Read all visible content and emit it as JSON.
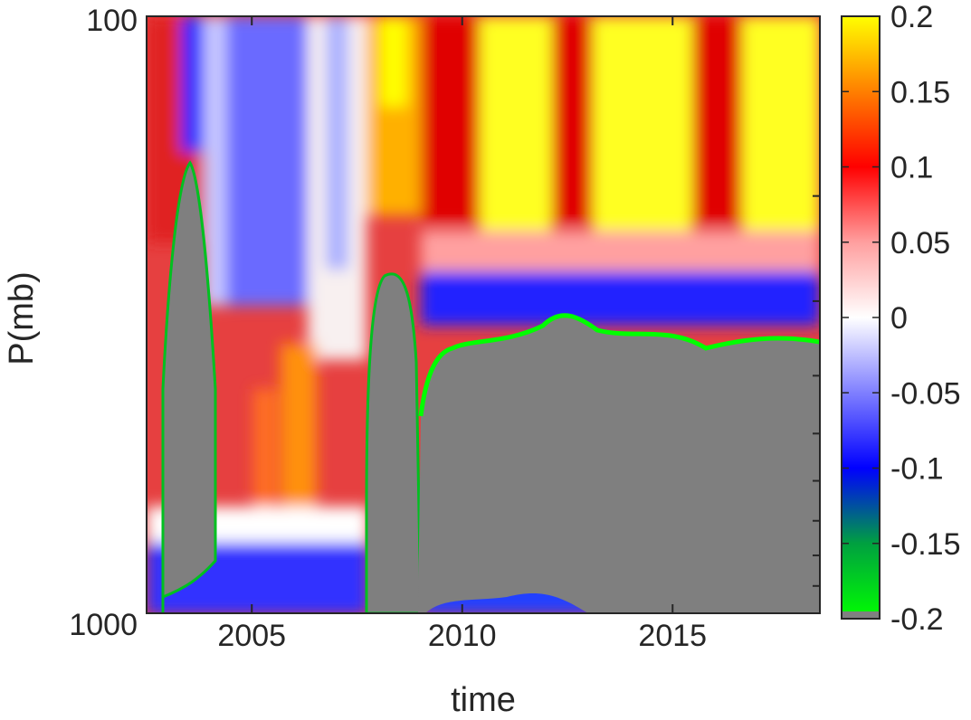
{
  "chart_data": {
    "type": "heatmap",
    "title": "",
    "xlabel": "time",
    "ylabel": "P(mb)",
    "x_range": [
      2002.5,
      2018.5
    ],
    "y_range": [
      100,
      1000
    ],
    "y_scale": "log",
    "y_reversed": true,
    "x_ticks": [
      2005,
      2010,
      2015
    ],
    "x_tick_labels": [
      "2005",
      "2010",
      "2015"
    ],
    "y_tick_labels": [
      "100",
      "1000"
    ],
    "colorbar": {
      "range": [
        -0.2,
        0.2
      ],
      "ticks": [
        0.2,
        0.15,
        0.1,
        0.05,
        0,
        -0.05,
        -0.1,
        -0.15,
        -0.2
      ],
      "tick_labels": [
        "0.2",
        "0.15",
        "0.1",
        "0.05",
        "0",
        "-0.05",
        "-0.1",
        "-0.15",
        "-0.2"
      ],
      "colors": {
        "-0.2": "#00ff00",
        "-0.15": "#00a040",
        "-0.1": "#0000ff",
        "-0.05": "#7f7fff",
        "0": "#ffffff",
        "0.05": "#ff9f9f",
        "0.1": "#ff0000",
        "0.15": "#ff7f00",
        "0.2": "#ffff00"
      },
      "missing_color": "#808080"
    },
    "missing_regions": [
      {
        "time": [
          2003.5,
          2004.7
        ],
        "pressure": [
          210,
          960
        ]
      },
      {
        "time": [
          2008.0,
          2009.1
        ],
        "pressure": [
          320,
          980
        ]
      },
      {
        "time": [
          2009.2,
          2018.5
        ],
        "pressure": [
          390,
          1000
        ]
      }
    ]
  }
}
